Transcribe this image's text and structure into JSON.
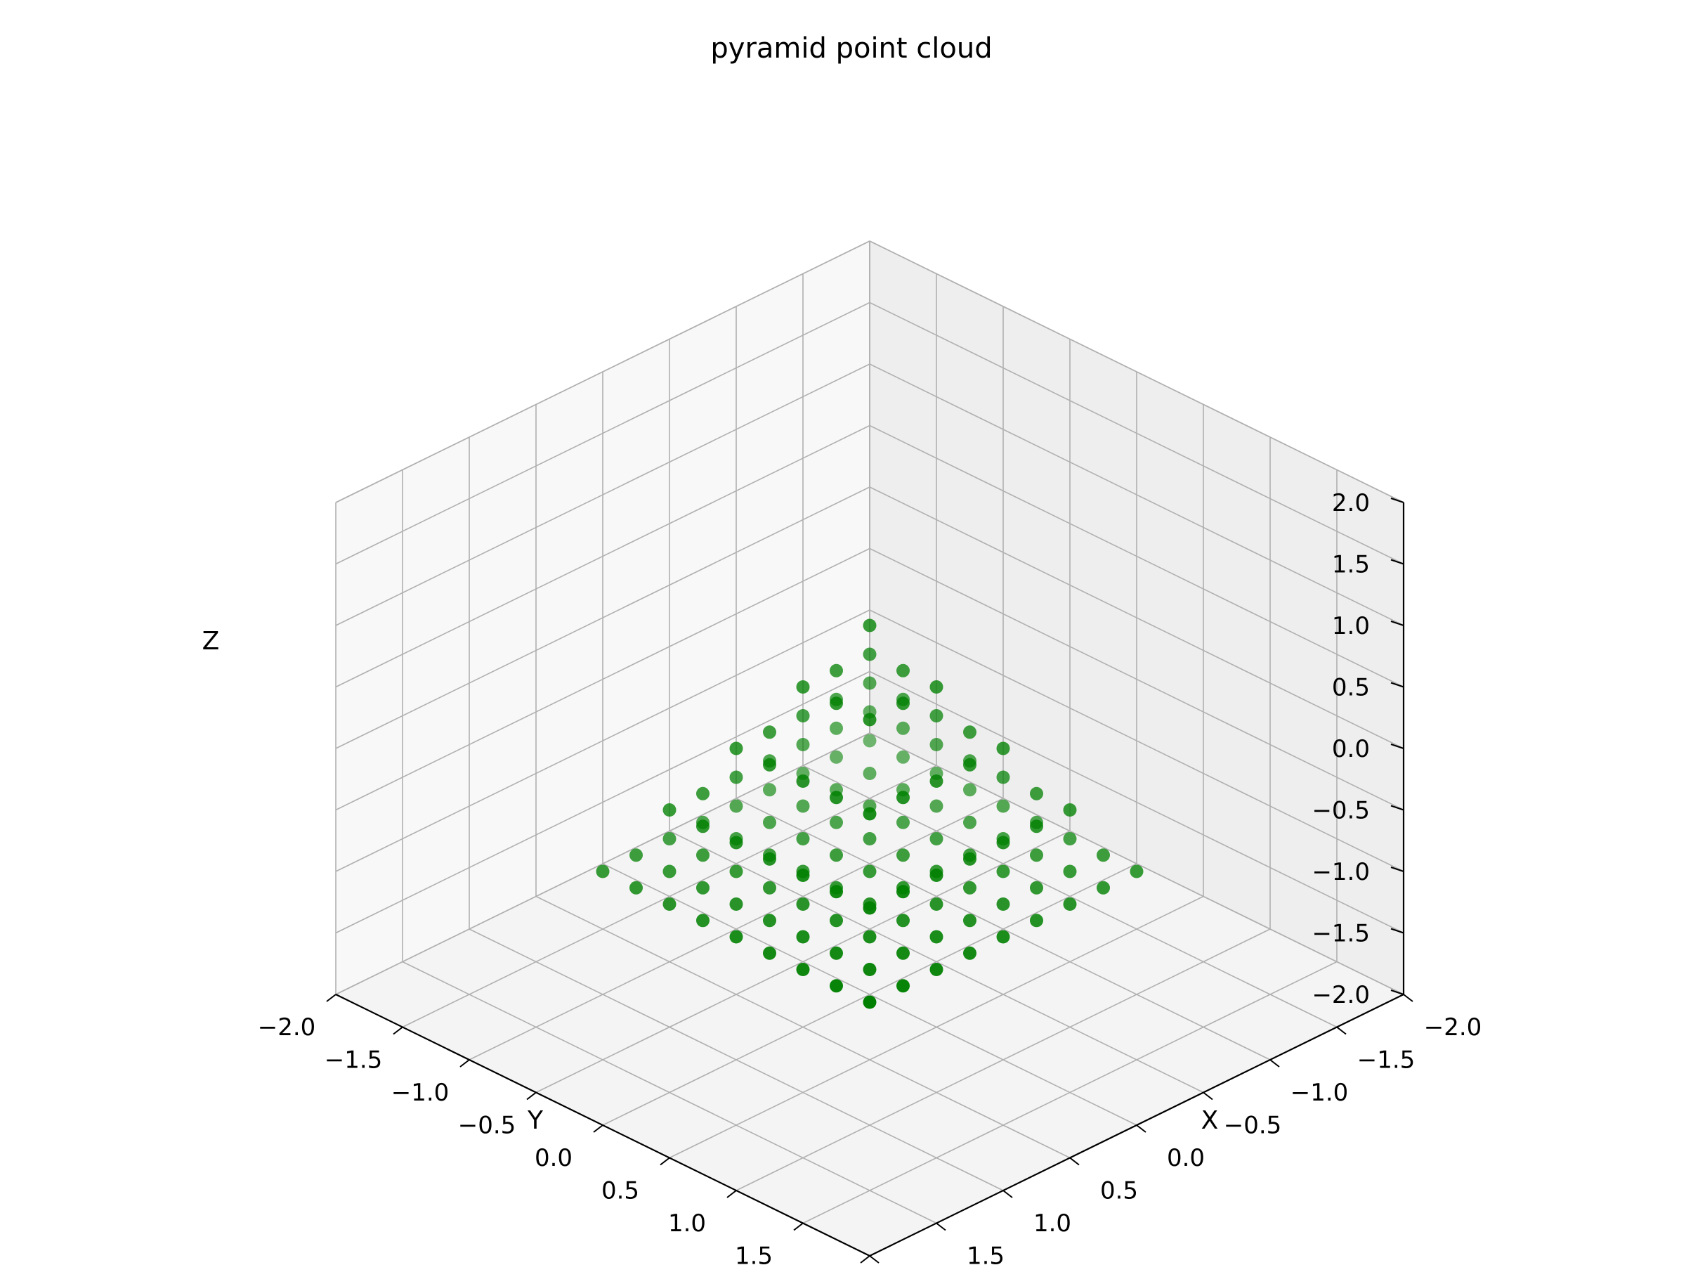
{
  "chart_data": {
    "type": "scatter",
    "title": "pyramid point cloud",
    "xlabel": "X",
    "ylabel": "Y",
    "zlabel": "Z",
    "xlim": [
      -2.0,
      2.0
    ],
    "ylim": [
      -2.0,
      2.0
    ],
    "zlim": [
      -2.0,
      2.0
    ],
    "xticks": [
      "−2.0",
      "−1.5",
      "−1.0",
      "−0.5",
      "0.0",
      "0.5",
      "1.0",
      "1.5",
      "2.0"
    ],
    "yticks": [
      "−2.0",
      "−1.5",
      "−1.0",
      "−0.5",
      "0.0",
      "0.5",
      "1.0",
      "1.5",
      "2.0"
    ],
    "zticks": [
      "−2.0",
      "−1.5",
      "−1.0",
      "−0.5",
      "0.0",
      "0.5",
      "1.0",
      "1.5",
      "2.0"
    ],
    "tick_values": [
      -2.0,
      -1.5,
      -1.0,
      -0.5,
      0.0,
      0.5,
      1.0,
      1.5,
      2.0
    ],
    "grid": true,
    "view": {
      "elev": 30,
      "azim": 45
    },
    "marker_color": "#008000",
    "pane_color": "#f2f2f2",
    "grid_color": "#b0b0b0",
    "series": [
      {
        "shape": "square pyramid (surface points)",
        "apex": [
          0.0,
          0.0,
          1.0
        ],
        "base_z": -1.0,
        "base_corners": [
          [
            -1.0,
            -1.0,
            -1.0
          ],
          [
            1.0,
            -1.0,
            -1.0
          ],
          [
            1.0,
            1.0,
            -1.0
          ],
          [
            -1.0,
            1.0,
            -1.0
          ]
        ],
        "grid_step": 0.25
      }
    ]
  }
}
